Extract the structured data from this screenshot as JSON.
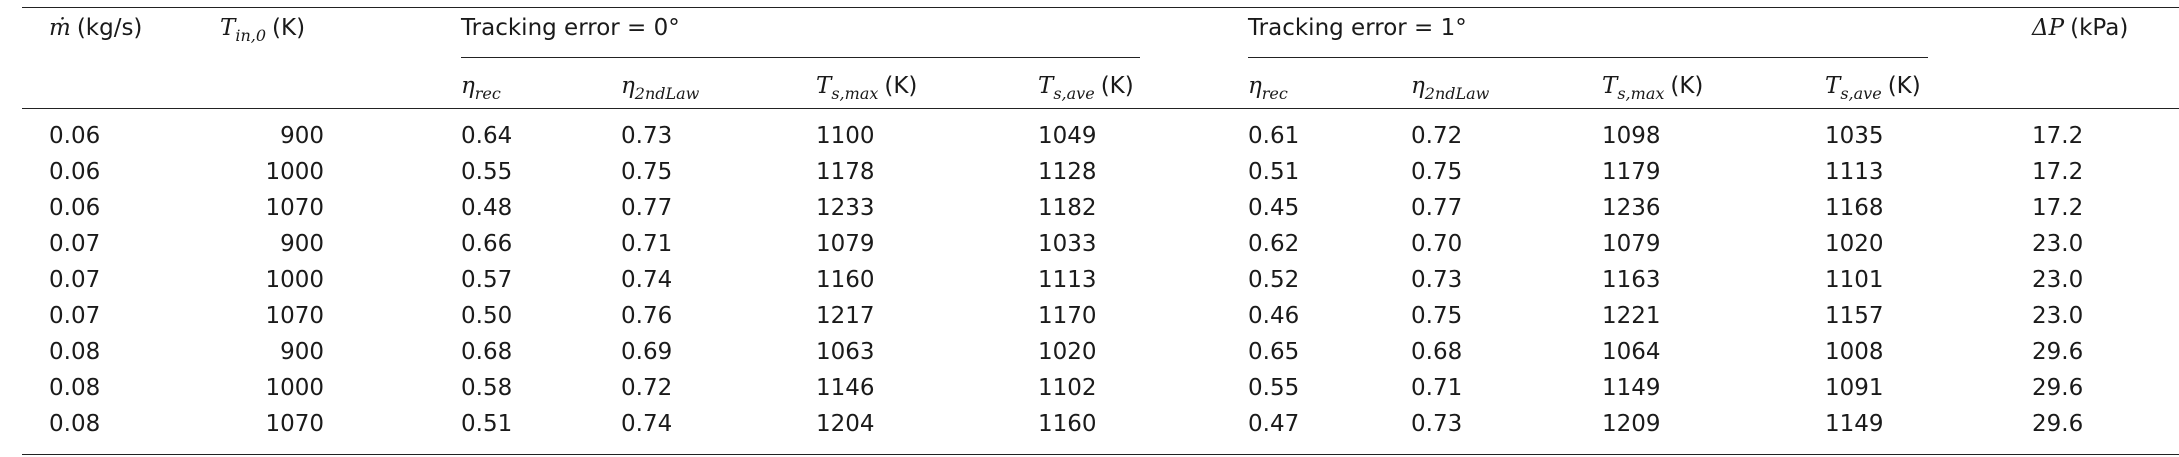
{
  "table": {
    "header": {
      "columns": [
        {
          "symbol": "ṁ",
          "unit": "(kg/s)"
        },
        {
          "symbol": "T",
          "sub": "in,0",
          "unit": "(K)"
        }
      ],
      "groups": [
        {
          "title": "Tracking error = 0°",
          "columns": [
            {
              "symbol": "η",
              "sub": "rec"
            },
            {
              "symbol": "η",
              "sub": "2ndLaw"
            },
            {
              "symbol": "T",
              "sub": "s,max",
              "unit": "(K)"
            },
            {
              "symbol": "T",
              "sub": "s,ave",
              "unit": "(K)"
            }
          ]
        },
        {
          "title": "Tracking error = 1°",
          "columns": [
            {
              "symbol": "η",
              "sub": "rec"
            },
            {
              "symbol": "η",
              "sub": "2ndLaw"
            },
            {
              "symbol": "T",
              "sub": "s,max",
              "unit": "(K)"
            },
            {
              "symbol": "T",
              "sub": "s,ave",
              "unit": "(K)"
            }
          ]
        }
      ],
      "trailing": [
        {
          "symbol": "ΔP",
          "unit": "(kPa)"
        }
      ]
    },
    "rows": [
      [
        "0.06",
        "900",
        "0.64",
        "0.73",
        "1100",
        "1049",
        "0.61",
        "0.72",
        "1098",
        "1035",
        "17.2"
      ],
      [
        "0.06",
        "1000",
        "0.55",
        "0.75",
        "1178",
        "1128",
        "0.51",
        "0.75",
        "1179",
        "1113",
        "17.2"
      ],
      [
        "0.06",
        "1070",
        "0.48",
        "0.77",
        "1233",
        "1182",
        "0.45",
        "0.77",
        "1236",
        "1168",
        "17.2"
      ],
      [
        "0.07",
        "900",
        "0.66",
        "0.71",
        "1079",
        "1033",
        "0.62",
        "0.70",
        "1079",
        "1020",
        "23.0"
      ],
      [
        "0.07",
        "1000",
        "0.57",
        "0.74",
        "1160",
        "1113",
        "0.52",
        "0.73",
        "1163",
        "1101",
        "23.0"
      ],
      [
        "0.07",
        "1070",
        "0.50",
        "0.76",
        "1217",
        "1170",
        "0.46",
        "0.75",
        "1221",
        "1157",
        "23.0"
      ],
      [
        "0.08",
        "900",
        "0.68",
        "0.69",
        "1063",
        "1020",
        "0.65",
        "0.68",
        "1064",
        "1008",
        "29.6"
      ],
      [
        "0.08",
        "1000",
        "0.58",
        "0.72",
        "1146",
        "1102",
        "0.55",
        "0.71",
        "1149",
        "1091",
        "29.6"
      ],
      [
        "0.08",
        "1070",
        "0.51",
        "0.74",
        "1204",
        "1160",
        "0.47",
        "0.73",
        "1209",
        "1149",
        "29.6"
      ]
    ]
  }
}
